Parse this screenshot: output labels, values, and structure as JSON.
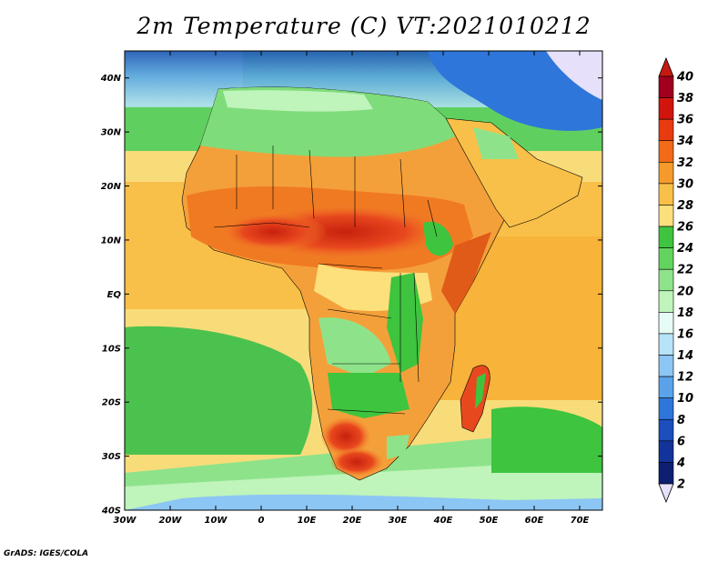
{
  "title": "2m Temperature (C) VT:2021010212",
  "credit": "GrADS: IGES/COLA",
  "map": {
    "projection": "lat-lon",
    "lon_range": [
      -30,
      75
    ],
    "lat_range": [
      -40,
      45
    ],
    "lat_labels": [
      "40N",
      "30N",
      "20N",
      "10N",
      "EQ",
      "10S",
      "20S",
      "30S",
      "40S"
    ],
    "lon_labels": [
      "30W",
      "20W",
      "10W",
      "0",
      "10E",
      "20E",
      "30E",
      "40E",
      "50E",
      "60E",
      "70E"
    ]
  },
  "colorbar": {
    "levels": [
      "40",
      "38",
      "36",
      "34",
      "32",
      "30",
      "28",
      "26",
      "24",
      "22",
      "20",
      "18",
      "16",
      "14",
      "12",
      "10",
      "8",
      "6",
      "4",
      "2"
    ],
    "colors": [
      "#a0001e",
      "#d2150c",
      "#e83c10",
      "#f26a1a",
      "#f59a2b",
      "#f8c048",
      "#fbe07c",
      "#3ec43e",
      "#62d45e",
      "#8ee38a",
      "#bff4bb",
      "#e6fbf5",
      "#b7e3f7",
      "#8cc6f4",
      "#5aa3ea",
      "#2e76d9",
      "#1c4fbd",
      "#12339a",
      "#0c1f72"
    ],
    "top_arrow_color": "#c41a12",
    "bottom_arrow_color": "#e6e0fa"
  },
  "colors": {
    "ocean_warm": "#f7c24e",
    "ocean_mild": "#f9dc7a",
    "ocean_cool": "#56cf5a",
    "ocean_cold": "#9edff5",
    "land_hot": "#e8481e",
    "land_warm": "#f4882a",
    "land_green": "#3fc23f",
    "europe_cold": "#2e76d9",
    "coast_line": "#000000"
  }
}
